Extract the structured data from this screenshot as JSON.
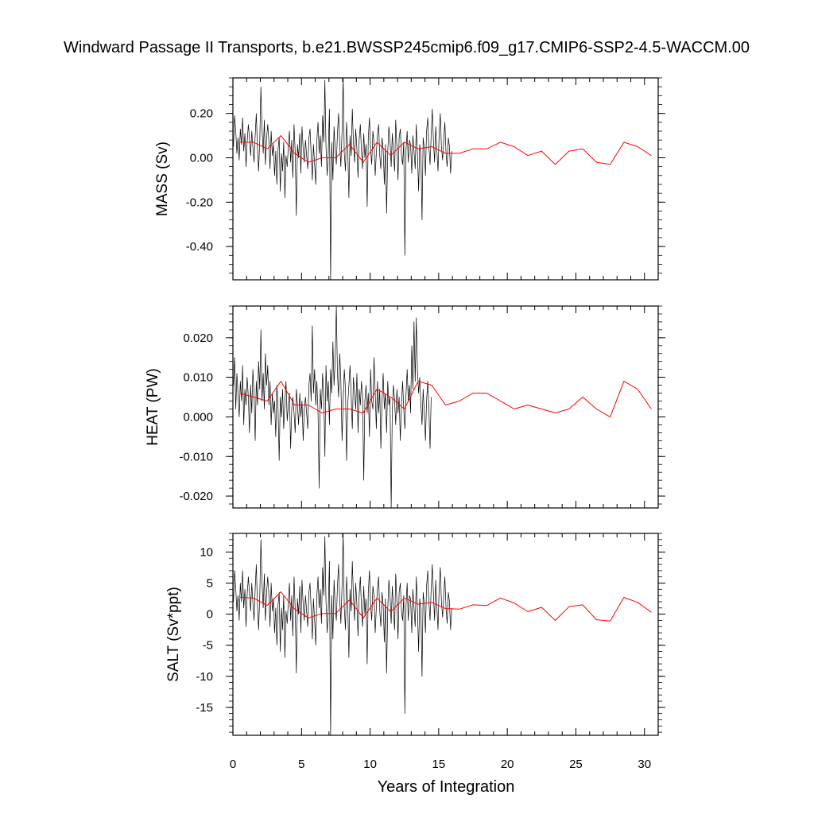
{
  "chart_data": {
    "type": "line",
    "title": "Windward Passage II Transports, b.e21.BWSSP245cmip6.f09_g17.CMIP6-SSP2-4.5-WACCM.00",
    "xlabel": "Years of Integration",
    "xlim": [
      0,
      31
    ],
    "xticks": [
      "0",
      "5",
      "10",
      "15",
      "20",
      "25",
      "30"
    ],
    "panels": [
      {
        "ylabel": "MASS (Sv)",
        "ylim": [
          -0.55,
          0.36
        ],
        "yticks": [
          0.2,
          0.0,
          -0.2,
          -0.4
        ],
        "ytick_labels": [
          "0.20",
          "0.00",
          "-0.20",
          "-0.40"
        ],
        "series": [
          {
            "color": "#000000",
            "style": "monthly",
            "x_step": 0.0833,
            "values": [
              0.05,
              0.19,
              0.12,
              0.02,
              0.09,
              -0.01,
              0.13,
              0.06,
              0.18,
              0.03,
              0.11,
              -0.04,
              0.07,
              0.15,
              0.09,
              0.01,
              0.12,
              0.05,
              -0.02,
              0.1,
              0.2,
              0.04,
              -0.06,
              0.08,
              0.32,
              0.13,
              0.02,
              0.17,
              -0.03,
              0.09,
              0.15,
              0.07,
              -0.05,
              0.12,
              0.01,
              0.06,
              -0.08,
              0.03,
              -0.12,
              0.04,
              0.09,
              -0.15,
              0.02,
              -0.06,
              0.07,
              -0.18,
              0.01,
              -0.04,
              0.05,
              0.12,
              -0.02,
              0.08,
              -0.09,
              0.15,
              0.03,
              -0.26,
              0.06,
              0.0,
              0.11,
              -0.07,
              0.14,
              0.04,
              -0.02,
              0.08,
              0.01,
              -0.05,
              0.09,
              0.13,
              0.02,
              -0.1,
              0.06,
              -0.03,
              -0.12,
              0.08,
              0.16,
              0.02,
              0.1,
              -0.04,
              0.19,
              0.07,
              0.35,
              0.05,
              -0.08,
              0.03,
              0.22,
              -0.55,
              0.07,
              -0.1,
              0.14,
              0.04,
              -0.03,
              0.11,
              0.2,
              0.06,
              -0.04,
              0.12,
              0.36,
              0.02,
              -0.06,
              0.16,
              0.05,
              -0.18,
              0.1,
              0.01,
              0.22,
              0.07,
              -0.02,
              0.13,
              0.04,
              -0.09,
              0.08,
              0.15,
              0.03,
              -0.05,
              0.11,
              0.0,
              0.06,
              -0.22,
              0.09,
              0.18,
              0.04,
              -0.03,
              0.12,
              0.07,
              -0.08,
              0.02,
              0.1,
              0.15,
              0.01,
              -0.05,
              0.09,
              0.04,
              -0.12,
              0.06,
              -0.25,
              0.03,
              0.14,
              0.08,
              -0.04,
              0.11,
              0.02,
              -0.06,
              0.17,
              0.05,
              -0.1,
              0.09,
              0.13,
              0.01,
              -0.03,
              0.07,
              -0.44,
              0.04,
              0.12,
              -0.02,
              0.08,
              0.06,
              -0.07,
              0.1,
              0.03,
              -0.05,
              0.15,
              0.02,
              -0.15,
              0.06,
              0.01,
              -0.28,
              0.09,
              0.04,
              -0.08,
              0.12,
              0.18,
              0.05,
              -0.03,
              0.1,
              0.22,
              0.07,
              -0.02,
              0.14,
              0.03,
              -0.06,
              0.11,
              0.2,
              0.05,
              -0.01,
              0.08,
              0.16,
              0.02,
              -0.04,
              0.09,
              0.05,
              -0.07,
              0.03
            ]
          },
          {
            "color": "#ff0000",
            "style": "annual_mean",
            "x_step": 1.0,
            "values": [
              0.07,
              0.07,
              0.04,
              0.1,
              0.02,
              -0.02,
              0.0,
              0.0,
              0.06,
              -0.02,
              0.07,
              0.01,
              0.07,
              0.04,
              0.05,
              0.02,
              0.02,
              0.04,
              0.04,
              0.07,
              0.05,
              0.01,
              0.03,
              -0.03,
              0.03,
              0.04,
              -0.02,
              -0.03,
              0.07,
              0.05,
              0.01
            ]
          }
        ]
      },
      {
        "ylabel": "HEAT (PW)",
        "ylim": [
          -0.023,
          0.028
        ],
        "yticks": [
          0.02,
          0.01,
          0.0,
          -0.01,
          -0.02
        ],
        "ytick_labels": [
          "0.020",
          "0.010",
          "0.000",
          "-0.010",
          "-0.020"
        ],
        "series": [
          {
            "color": "#000000",
            "style": "monthly",
            "x_step": 0.0833,
            "values": [
              0.008,
              0.015,
              0.002,
              0.011,
              0.006,
              0.0,
              0.009,
              0.004,
              0.013,
              -0.002,
              0.007,
              0.003,
              0.01,
              0.005,
              -0.004,
              0.008,
              0.001,
              0.012,
              0.006,
              -0.006,
              0.009,
              0.003,
              0.014,
              0.007,
              0.022,
              0.004,
              0.011,
              0.002,
              0.016,
              0.008,
              0.013,
              0.003,
              0.009,
              -0.002,
              0.006,
              0.001,
              0.004,
              -0.005,
              0.008,
              0.002,
              -0.011,
              0.005,
              0.0,
              0.007,
              -0.003,
              0.004,
              0.009,
              -0.001,
              0.003,
              0.006,
              -0.008,
              0.002,
              0.005,
              0.001,
              -0.004,
              0.007,
              0.003,
              -0.002,
              0.006,
              0.0,
              0.004,
              -0.006,
              0.002,
              0.005,
              0.001,
              -0.003,
              0.008,
              0.011,
              0.004,
              0.023,
              0.006,
              0.012,
              0.003,
              0.009,
              0.001,
              -0.018,
              0.007,
              0.002,
              0.011,
              0.005,
              -0.01,
              0.013,
              0.004,
              0.009,
              -0.002,
              0.012,
              0.006,
              0.019,
              0.008,
              0.014,
              0.028,
              0.011,
              0.005,
              0.016,
              0.009,
              -0.006,
              0.004,
              0.012,
              0.007,
              -0.011,
              0.003,
              0.008,
              0.013,
              0.005,
              -0.003,
              0.01,
              0.006,
              0.002,
              0.011,
              -0.004,
              0.007,
              0.003,
              0.009,
              0.005,
              -0.016,
              0.004,
              0.008,
              0.001,
              0.006,
              -0.005,
              0.012,
              0.004,
              0.002,
              0.015,
              0.006,
              -0.003,
              0.009,
              0.001,
              0.007,
              -0.008,
              0.004,
              0.011,
              0.002,
              0.006,
              -0.004,
              0.009,
              0.003,
              0.005,
              -0.023,
              0.002,
              0.008,
              0.004,
              -0.002,
              0.007,
              0.001,
              0.005,
              -0.006,
              0.003,
              0.009,
              0.002,
              -0.003,
              0.006,
              0.012,
              0.004,
              0.008,
              0.001,
              0.018,
              0.007,
              0.024,
              0.009,
              0.025,
              0.012,
              0.006,
              0.01,
              0.003,
              -0.002,
              0.007,
              0.001,
              -0.006,
              0.004,
              0.009,
              0.002,
              -0.008,
              0.005
            ]
          },
          {
            "color": "#ff0000",
            "style": "annual_mean",
            "x_step": 1.0,
            "values": [
              0.006,
              0.005,
              0.004,
              0.009,
              0.003,
              0.003,
              0.001,
              0.002,
              0.002,
              0.001,
              0.007,
              0.005,
              0.002,
              0.009,
              0.008,
              0.003,
              0.004,
              0.006,
              0.006,
              0.004,
              0.002,
              0.003,
              0.002,
              0.001,
              0.002,
              0.005,
              0.002,
              0.0,
              0.009,
              0.007,
              0.002
            ]
          }
        ]
      },
      {
        "ylabel": "SALT (Sv*ppt)",
        "ylim": [
          -19.5,
          13
        ],
        "yticks": [
          10,
          5,
          0,
          -5,
          -10,
          -15
        ],
        "ytick_labels": [
          "10",
          "5",
          "0",
          "-5",
          "-10",
          "-15"
        ],
        "series": [
          {
            "color": "#000000",
            "style": "monthly",
            "x_step": 0.0833,
            "values": [
              2,
              7,
              4,
              0.5,
              3,
              -1,
              5,
              2,
              7,
              1,
              4,
              -2,
              3,
              6,
              3.5,
              0.5,
              5,
              2,
              -1,
              4,
              8,
              1.5,
              -2.5,
              3,
              12,
              5,
              1,
              6.5,
              -1,
              3.5,
              6,
              3,
              -2,
              5,
              0.5,
              2.5,
              -3,
              1,
              -5,
              1.5,
              3.5,
              -6,
              1,
              -2.5,
              3,
              -7,
              0.5,
              -1.5,
              2,
              5,
              -1,
              3,
              -3.5,
              6,
              1,
              -9.5,
              2.5,
              0,
              4.5,
              -3,
              5.5,
              1.5,
              -1,
              3,
              0.5,
              -2,
              3.5,
              5,
              1,
              -4,
              2.5,
              -1,
              -5,
              3,
              6,
              1,
              4,
              -1.5,
              7.5,
              3,
              12.5,
              2,
              -3,
              1,
              8.5,
              -20,
              3,
              -4,
              5.5,
              1.5,
              -1,
              4.5,
              8,
              2.5,
              -1.5,
              4.5,
              13,
              1,
              -2.5,
              6,
              2,
              -7,
              4,
              0.5,
              8.5,
              3,
              -1,
              5,
              1.5,
              -3.5,
              3,
              6,
              1,
              -2,
              4.5,
              0,
              2.5,
              -8,
              3.5,
              7,
              1.5,
              -1,
              4.5,
              3,
              -3,
              1,
              4,
              6,
              0.5,
              -2,
              3.5,
              1.5,
              -4.5,
              2.5,
              -9.5,
              1,
              5.5,
              3,
              -1.5,
              4.5,
              1,
              -2.5,
              6.5,
              2,
              -4,
              3.5,
              5,
              0.5,
              -1,
              3,
              -16,
              1.5,
              5,
              -1,
              3,
              2.5,
              -3,
              4,
              1,
              -2,
              6,
              1,
              -6,
              2.5,
              0.5,
              -10,
              3.5,
              1.5,
              -3,
              4.5,
              7,
              2,
              -1,
              4,
              8,
              3,
              -1,
              5.5,
              1,
              -2.5,
              4.5,
              7.5,
              2,
              -0.5,
              3,
              6,
              1,
              -1.5,
              3.5,
              2,
              -2.5,
              1
            ]
          },
          {
            "color": "#ff0000",
            "style": "annual_mean",
            "x_step": 1.0,
            "values": [
              2.7,
              2.6,
              1.4,
              3.6,
              0.8,
              -0.6,
              0.1,
              0.1,
              2.3,
              -0.6,
              2.6,
              0.4,
              2.6,
              1.6,
              1.9,
              0.9,
              0.8,
              1.5,
              1.4,
              2.6,
              1.8,
              0.4,
              1.1,
              -1.0,
              1.2,
              1.5,
              -0.9,
              -1.1,
              2.7,
              1.9,
              0.3
            ]
          }
        ]
      }
    ]
  }
}
